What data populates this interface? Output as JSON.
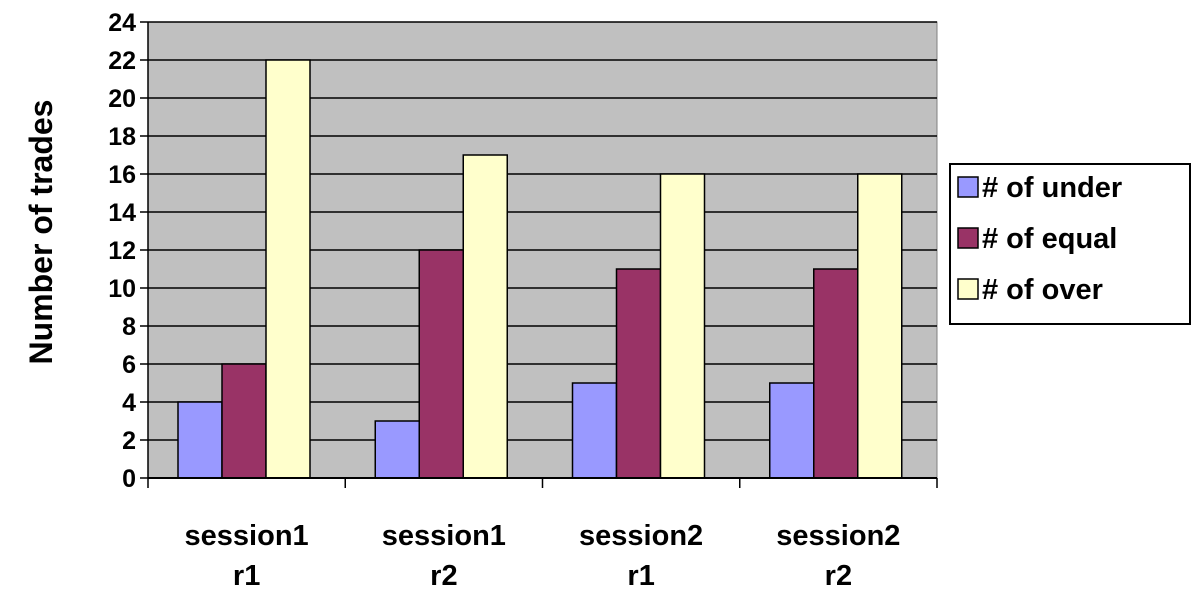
{
  "chart_data": {
    "type": "bar",
    "title": "",
    "xlabel": "",
    "ylabel": "Number of trades",
    "categories": [
      [
        "session1",
        "r1"
      ],
      [
        "session1",
        "r2"
      ],
      [
        "session2",
        "r1"
      ],
      [
        "session2",
        "r2"
      ]
    ],
    "series": [
      {
        "name": "# of under",
        "color": "#9999ff",
        "values": [
          4,
          3,
          5,
          5
        ]
      },
      {
        "name": "# of equal",
        "color": "#993366",
        "values": [
          6,
          12,
          11,
          11
        ]
      },
      {
        "name": "# of over",
        "color": "#ffffcc",
        "values": [
          22,
          17,
          16,
          16
        ]
      }
    ],
    "ylim": [
      0,
      24
    ],
    "ytick_step": 2,
    "grid": true,
    "plot_background": "#c0c0c0",
    "legend_position": "right"
  }
}
